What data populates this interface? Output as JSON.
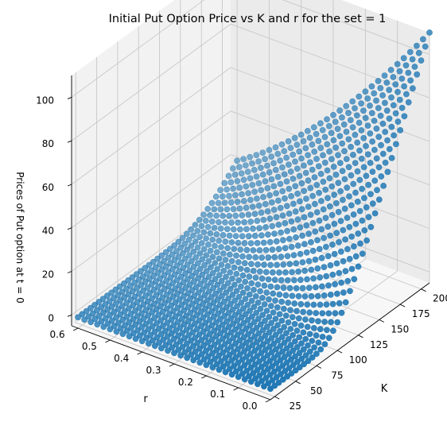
{
  "chart_data": {
    "type": "scatter",
    "projection": "3d",
    "title": "Initial Put Option Price vs K and r for the set = 1",
    "xlabel": "K",
    "ylabel": "r",
    "zlabel": "Prices of Put option at t = 0",
    "xlim": [
      20,
      210
    ],
    "ylim": [
      0,
      0.62
    ],
    "zlim": [
      -5,
      110
    ],
    "x_ticks": [
      25,
      50,
      75,
      100,
      125,
      150,
      175,
      200
    ],
    "y_ticks": [
      0.0,
      0.1,
      0.2,
      0.3,
      0.4,
      0.5,
      0.6
    ],
    "z_ticks": [
      0,
      20,
      40,
      60,
      80,
      100
    ],
    "x_tick_labels": [
      "25",
      "50",
      "75",
      "100",
      "125",
      "150",
      "175",
      "200"
    ],
    "y_tick_labels": [
      "0.0",
      "0.1",
      "0.2",
      "0.3",
      "0.4",
      "0.5",
      "0.6"
    ],
    "z_tick_labels": [
      "0",
      "20",
      "40",
      "60",
      "80",
      "100"
    ],
    "grid": true,
    "series": [
      {
        "color": "#1f77b4",
        "x_range": [
          20,
          210
        ],
        "y_range": [
          0.0,
          0.6
        ],
        "x_count": 39,
        "y_count": 31,
        "z_values_sampled": [
          {
            "x": 20,
            "y": 0.6,
            "z": 0
          },
          {
            "x": 100,
            "y": 0.6,
            "z": 0
          },
          {
            "x": 210,
            "y": 0.6,
            "z": 60
          },
          {
            "x": 20,
            "y": 0.0,
            "z": 0
          },
          {
            "x": 100,
            "y": 0.0,
            "z": 2
          },
          {
            "x": 130,
            "y": 0.0,
            "z": 30
          },
          {
            "x": 210,
            "y": 0.0,
            "z": 110
          }
        ]
      }
    ]
  }
}
